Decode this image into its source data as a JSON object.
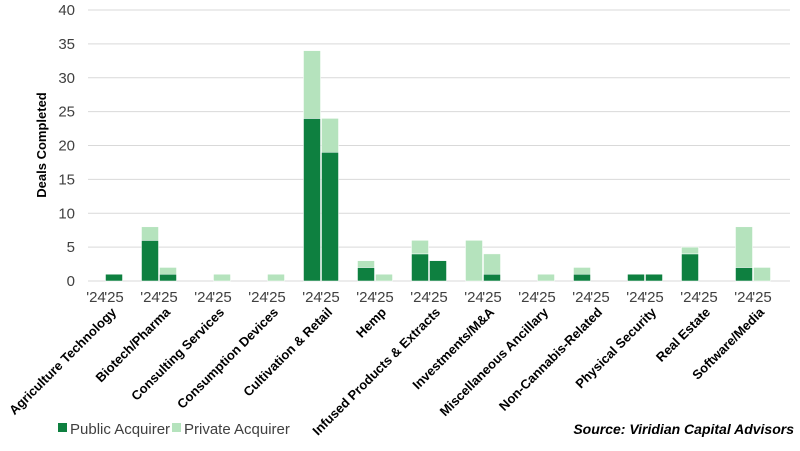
{
  "chart_data": {
    "type": "bar",
    "stacked": true,
    "ylabel": "Deals Completed",
    "ylim": [
      0,
      40
    ],
    "yticks": [
      0,
      5,
      10,
      15,
      20,
      25,
      30,
      35,
      40
    ],
    "grid": true,
    "legend_placement": "bottom-left",
    "sub_categories": [
      "'24",
      "'25"
    ],
    "categories": [
      "Agriculture Technology",
      "Biotech/Pharma",
      "Consulting Services",
      "Consumption Devices",
      "Cultivation & Retail",
      "Hemp",
      "Infused Products & Extracts",
      "Investments/M&A",
      "Miscellaneous Ancillary",
      "Non-Cannabis-Related",
      "Physical Security",
      "Real Estate",
      "Software/Media"
    ],
    "series": [
      {
        "name": "Public Acquirer",
        "color": "#0e8040",
        "values_24": [
          0,
          6,
          0,
          0,
          24,
          2,
          4,
          0,
          0,
          1,
          1,
          4,
          2
        ],
        "values_25": [
          1,
          1,
          0,
          0,
          19,
          0,
          3,
          1,
          0,
          0,
          1,
          0,
          0
        ]
      },
      {
        "name": "Private Acquirer",
        "color": "#b5e3bd",
        "values_24": [
          0,
          2,
          0,
          0,
          10,
          1,
          2,
          6,
          0,
          1,
          0,
          1,
          6
        ],
        "values_25": [
          0,
          1,
          1,
          1,
          5,
          1,
          0,
          3,
          1,
          0,
          0,
          0,
          2
        ]
      }
    ],
    "source_label": "Source:",
    "source_text": "Viridian Capital Advisors"
  }
}
